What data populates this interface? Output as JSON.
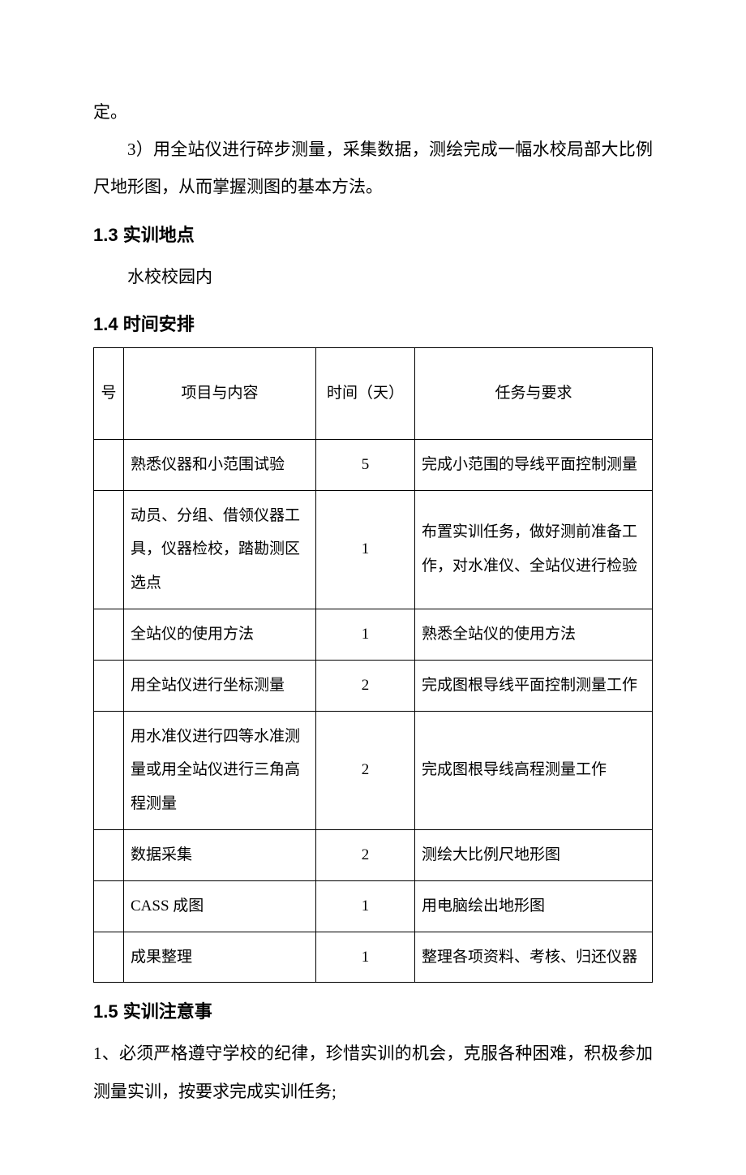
{
  "intro": {
    "line1": "定。",
    "line2": "3）用全站仪进行碎步测量，采集数据，测绘完成一幅水校局部大比例尺地形图，从而掌握测图的基本方法。"
  },
  "section13": {
    "heading": "1.3 实训地点",
    "body": "水校校园内"
  },
  "section14": {
    "heading": "1.4 时间安排",
    "table": {
      "headers": {
        "num": "号",
        "content": "项目与内容",
        "time": "时间（天）",
        "req": "任务与要求"
      },
      "rows": [
        {
          "num": "",
          "content": "熟悉仪器和小范围试验",
          "time": "5",
          "req": "完成小范围的导线平面控制测量"
        },
        {
          "num": "",
          "content": "动员、分组、借领仪器工具，仪器检校，踏勘测区选点",
          "time": "1",
          "req": "布置实训任务，做好测前准备工作，对水准仪、全站仪进行检验"
        },
        {
          "num": "",
          "content": "全站仪的使用方法",
          "time": "1",
          "req": "熟悉全站仪的使用方法"
        },
        {
          "num": "",
          "content": "用全站仪进行坐标测量",
          "time": "2",
          "req": "完成图根导线平面控制测量工作"
        },
        {
          "num": "",
          "content": "用水准仪进行四等水准测量或用全站仪进行三角高程测量",
          "time": "2",
          "req": "完成图根导线高程测量工作"
        },
        {
          "num": "",
          "content": "数据采集",
          "time": "2",
          "req": "测绘大比例尺地形图"
        },
        {
          "num": "",
          "content": "CASS 成图",
          "time": "1",
          "req": "用电脑绘出地形图",
          "en_prefix": true
        },
        {
          "num": "",
          "content": "成果整理",
          "time": "1",
          "req": "整理各项资料、考核、归还仪器"
        }
      ]
    }
  },
  "section15": {
    "heading": "1.5 实训注意事",
    "body1": "1、必须严格遵守学校的纪律，珍惜实训的机会，克服各种困难，积极参加测量实训，按要求完成实训任务;"
  }
}
